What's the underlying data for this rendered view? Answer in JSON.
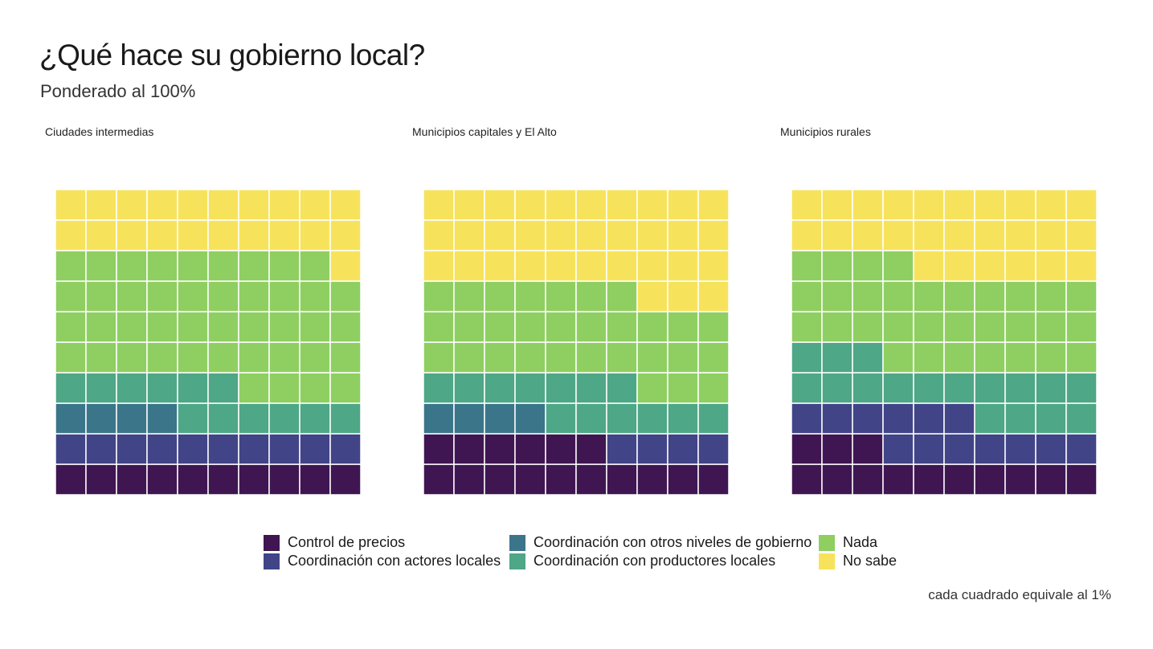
{
  "chart_data": {
    "type": "waffle",
    "title": "¿Qué hace su gobierno local?",
    "subtitle": "Ponderado al 100%",
    "caption": "cada cuadrado equivale al 1%",
    "grid": "10x10",
    "categories": [
      {
        "name": "Control de precios",
        "color": "#3f1651"
      },
      {
        "name": "Coordinación con actores locales",
        "color": "#414487"
      },
      {
        "name": "Coordinación con otros niveles de gobierno",
        "color": "#3b758a"
      },
      {
        "name": "Coordinación con productores locales",
        "color": "#4ea786"
      },
      {
        "name": "Nada",
        "color": "#8fcf62"
      },
      {
        "name": "No sabe",
        "color": "#f7e35b"
      }
    ],
    "panels": [
      {
        "label": "Ciudades intermedias",
        "values": [
          10,
          10,
          4,
          12,
          43,
          21
        ]
      },
      {
        "label": "Municipios capitales y El Alto",
        "values": [
          16,
          4,
          4,
          13,
          30,
          33
        ]
      },
      {
        "label": "Municipios rurales",
        "values": [
          13,
          13,
          0,
          17,
          31,
          26
        ]
      }
    ]
  }
}
